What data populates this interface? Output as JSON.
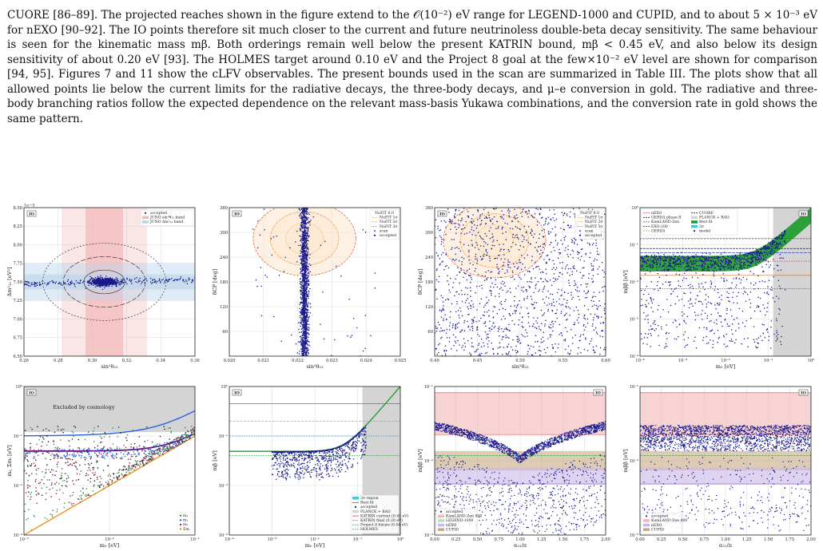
{
  "paragraph": {
    "text": "CUORE [86–89]. The projected reaches shown in the figure extend to the 𝒪(10⁻²) eV range for LEGEND-1000 and CUPID, and to about 5 × 10⁻³ eV for nEXO [90–92]. The IO points therefore sit much closer to the current and future neutrinoless double-beta decay sensitivity. The same behaviour is seen for the kinematic mass mβ. Both orderings remain well below the present KATRIN bound, mβ < 0.45 eV, and also below its design sensitivity of about 0.20 eV [93]. The HOLMES target around 0.10 eV and the Project 8 goal at the few×10⁻² eV level are shown for comparison [94, 95]. Figures 7 and 11 show the cLFV observables. The present bounds used in the scan are summarized in Table III. The plots show that all allowed points lie below the current limits for the radiative decays, the three-body decays, and μ–e conversion in gold. The radiative and three-body branching ratios follow the expected dependence on the relevant mass-basis Yukawa combinations, and the conversion rate in gold shows the same pattern."
  },
  "colors": {
    "points": "#1a1a8c",
    "red_band": "#f4b6b6",
    "blue_band": "#b9d3ea",
    "green": "#1a9a2a",
    "cyan": "#40c8d8",
    "gray_region": "#d4d4d4",
    "brown_band": "#c8a882",
    "purple_band": "#c8b8e8",
    "orange_line": "#f09020"
  },
  "chart_data": [
    {
      "id": "p1",
      "type": "scatter",
      "io_label": "IO",
      "xlabel": "sin²θ₁₂",
      "ylabel": "Δm²₂₁ [eV²]",
      "exponent_label": "1e−5",
      "xlim": [
        0.26,
        0.36
      ],
      "ylim": [
        6.5,
        8.5
      ],
      "xticks": [
        "0.26",
        "0.28",
        "0.30",
        "0.32",
        "0.34",
        "0.36"
      ],
      "yticks": [
        "6.50",
        "6.75",
        "7.00",
        "7.25",
        "7.50",
        "7.75",
        "8.00",
        "8.25",
        "8.50"
      ],
      "legend": [
        "accepted",
        "JUNO sin²θ₁₂ band",
        "JUNO Δm²₂₁ band"
      ],
      "center": [
        0.307,
        7.5
      ]
    },
    {
      "id": "p2",
      "type": "scatter",
      "io_label": "IO",
      "xlabel": "sin²θ₁₃",
      "ylabel": "δCP [deg]",
      "xlim": [
        0.02,
        0.025
      ],
      "ylim": [
        0,
        360
      ],
      "xticks": [
        "0.020",
        "0.021",
        "0.022",
        "0.023",
        "0.024",
        "0.025"
      ],
      "yticks": [
        "60",
        "120",
        "180",
        "240",
        "300",
        "360"
      ],
      "legend_title": "NuFIT 6.0",
      "legend": [
        "NuFIT 1σ",
        "NuFIT 2σ",
        "NuFIT 3σ",
        "scan",
        "accepted"
      ],
      "center": [
        0.0222,
        285
      ]
    },
    {
      "id": "p3",
      "type": "scatter",
      "io_label": "IO",
      "xlabel": "sin²θ₂₃",
      "ylabel": "δCP [deg]",
      "xlim": [
        0.4,
        0.6
      ],
      "ylim": [
        0,
        360
      ],
      "xticks": [
        "0.40",
        "0.45",
        "0.50",
        "0.55",
        "0.60"
      ],
      "yticks": [
        "60",
        "120",
        "180",
        "240",
        "300",
        "360"
      ],
      "legend_title": "NuFIT 6.0",
      "legend": [
        "NuFIT 1σ",
        "NuFIT 2σ",
        "NuFIT 3σ",
        "scan",
        "accepted"
      ],
      "center": [
        0.47,
        280
      ]
    },
    {
      "id": "p4",
      "type": "scatter",
      "io_label": "IO",
      "xlabel": "m₀ [eV]",
      "ylabel": "mββ [eV]",
      "x_scale": "log",
      "y_scale": "log",
      "xlim": [
        0.0001,
        1
      ],
      "ylim": [
        0.0001,
        1
      ],
      "xticks": [
        "10⁻⁴",
        "10⁻³",
        "10⁻²",
        "10⁻¹",
        "10⁰"
      ],
      "yticks": [
        "10⁻⁴",
        "10⁻³",
        "10⁻²",
        "10⁻¹",
        "10⁰"
      ],
      "legend": [
        "nEXO",
        "GERDA phase II",
        "KamLAND-Zen",
        "EXO-200",
        "GERDA",
        "CUORE",
        "PLANCK + BAO",
        "Best fit",
        "3σ",
        "model"
      ]
    },
    {
      "id": "p5",
      "type": "scatter",
      "io_label": "IO",
      "xlabel": "m₀ [eV]",
      "ylabel": "mᵢ, Σmᵢ [eV]",
      "x_scale": "log",
      "y_scale": "log",
      "xlim": [
        0.001,
        0.1
      ],
      "ylim": [
        0.001,
        1
      ],
      "xticks": [
        "10⁻³",
        "10⁻²",
        "10⁻¹"
      ],
      "yticks": [
        "10⁻³",
        "10⁻²",
        "10⁻¹",
        "10⁰"
      ],
      "annotation": "Excluded by cosmology",
      "legend": [
        "m₁",
        "m₂",
        "m₃",
        "Σmᵢ"
      ]
    },
    {
      "id": "p6",
      "type": "line",
      "io_label": "IO",
      "xlabel": "m₀ [eV]",
      "ylabel": "mβ [eV]",
      "x_scale": "log",
      "y_scale": "log",
      "xlim": [
        0.0001,
        1
      ],
      "ylim": [
        0.001,
        1
      ],
      "xticks": [
        "10⁻⁴",
        "10⁻³",
        "10⁻²",
        "10⁻¹",
        "10⁰"
      ],
      "yticks": [
        "10⁻³",
        "10⁻²",
        "10⁻¹",
        "10⁰"
      ],
      "legend": [
        "3σ region",
        "Best fit",
        "accepted",
        "PLANCK + BAO",
        "KATRIN current (0.45 eV)",
        "KATRIN final (0.20 eV)",
        "Project 8 future (0.04 eV)",
        "HOLMES"
      ],
      "hlines": [
        0.45,
        0.2,
        0.1,
        0.04
      ]
    },
    {
      "id": "p7",
      "type": "scatter",
      "io_label": "IO",
      "xlabel": "α₃₁/π",
      "ylabel": "mββ [eV]",
      "y_scale": "log",
      "xlim": [
        0,
        2
      ],
      "ylim": [
        0.001,
        0.2
      ],
      "xticks": [
        "0.00",
        "0.25",
        "0.50",
        "0.75",
        "1.00",
        "1.25",
        "1.50",
        "1.75",
        "2.00"
      ],
      "yticks": [
        "10⁻³",
        "10⁻²",
        "10⁻¹"
      ],
      "legend": [
        "accepted",
        "KamLAND-Zen 800",
        "LEGEND-1000",
        "nEXO",
        "CUPID"
      ]
    },
    {
      "id": "p8",
      "type": "scatter",
      "io_label": "IO",
      "xlabel": "α₃₁/π",
      "ylabel": "mββ [eV]",
      "y_scale": "log",
      "xlim": [
        0,
        2
      ],
      "ylim": [
        0.001,
        0.2
      ],
      "xticks": [
        "0.00",
        "0.25",
        "0.50",
        "0.75",
        "1.00",
        "1.25",
        "1.50",
        "1.75",
        "2.00"
      ],
      "yticks": [
        "10⁻³",
        "10⁻²",
        "10⁻¹"
      ],
      "legend": [
        "accepted",
        "KamLAND-Zen 800",
        "nEXO",
        "CUPID"
      ]
    }
  ]
}
